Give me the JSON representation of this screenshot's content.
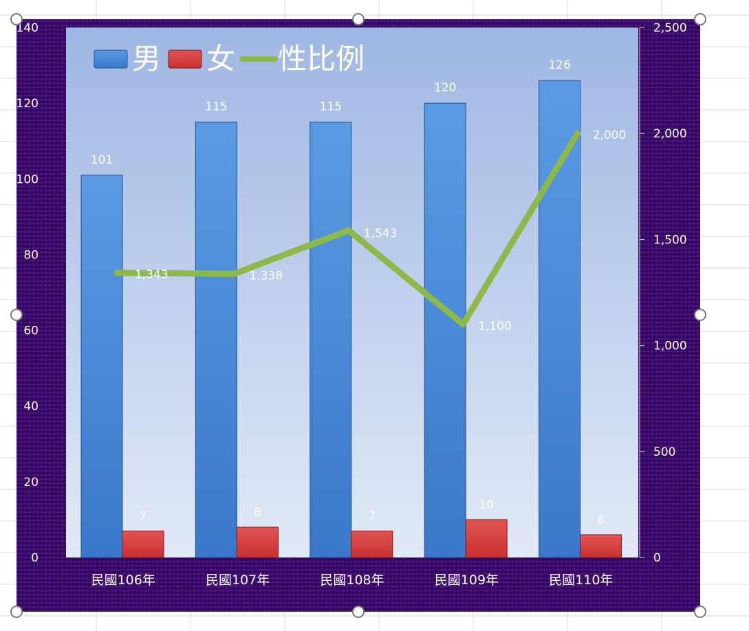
{
  "colors": {
    "male": "#3b78c9",
    "female": "#c9302f",
    "ratio": "#8db84a",
    "frame": "#3d0a6e",
    "plot_top": "#9fb7e3",
    "plot_bottom": "#e1e9f6",
    "label": "#ffffff"
  },
  "chart_data": {
    "type": "bar",
    "categories": [
      "民國106年",
      "民國107年",
      "民國108年",
      "民國109年",
      "民國110年"
    ],
    "series": [
      {
        "name": "男",
        "type": "bar",
        "axis": "left",
        "values": [
          101,
          115,
          115,
          120,
          126
        ]
      },
      {
        "name": "女",
        "type": "bar",
        "axis": "left",
        "values": [
          7,
          8,
          7,
          10,
          6
        ]
      },
      {
        "name": "性比例",
        "type": "line",
        "axis": "right",
        "values": [
          1343,
          1338,
          1543,
          1100,
          2000
        ]
      }
    ],
    "data_labels": {
      "男": [
        "101",
        "115",
        "115",
        "120",
        "126"
      ],
      "女": [
        "7",
        "8",
        "7",
        "10",
        "6"
      ],
      "性比例": [
        "1,343",
        "1,338",
        "1,543",
        "1,100",
        "2,000"
      ]
    },
    "y_left": {
      "ylim": [
        0,
        140
      ],
      "ticks": [
        "0",
        "20",
        "40",
        "60",
        "80",
        "100",
        "120",
        "140"
      ]
    },
    "y_right": {
      "ylim": [
        0,
        2500
      ],
      "ticks": [
        "0",
        "500",
        "1,000",
        "1,500",
        "2,000",
        "2,500"
      ]
    },
    "legend_position": "top-left",
    "grid": false
  }
}
